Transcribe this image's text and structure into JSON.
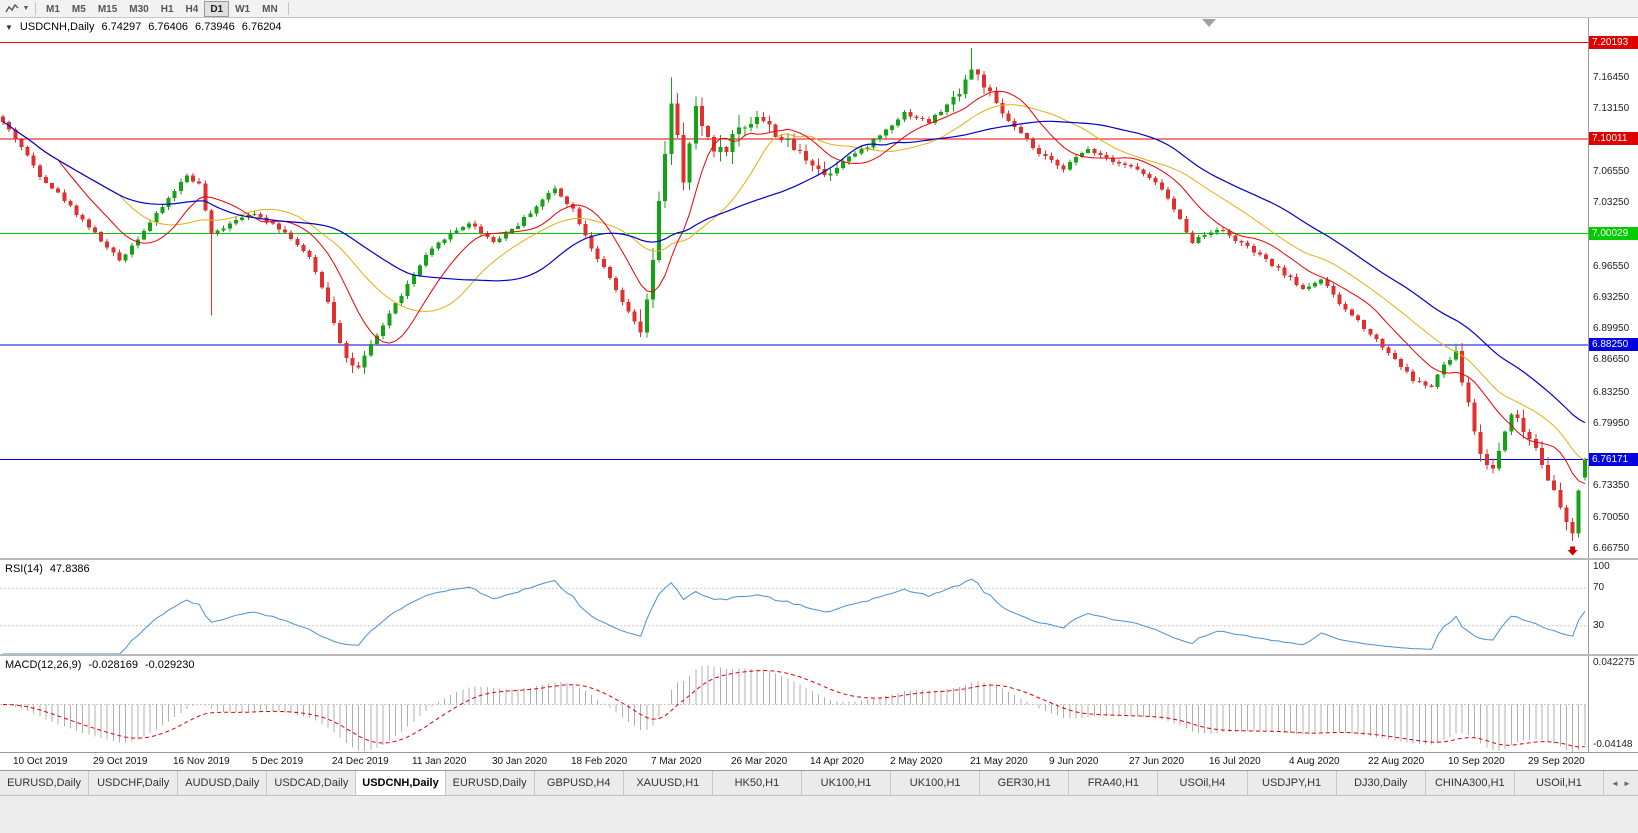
{
  "toolbar": {
    "timeframes": [
      "M1",
      "M5",
      "M15",
      "M30",
      "H1",
      "H4",
      "D1",
      "W1",
      "MN"
    ],
    "active_timeframe": "D1"
  },
  "chart": {
    "symbol_label": "USDCNH,Daily",
    "ohlc": {
      "open": "6.74297",
      "high": "6.76406",
      "low": "6.73946",
      "close": "6.76204"
    },
    "price_max": 7.228,
    "price_min": 6.6578,
    "axis_ticks": [
      "7.16450",
      "7.13150",
      "7.06550",
      "7.03250",
      "6.96550",
      "6.93250",
      "6.89950",
      "6.86650",
      "6.83250",
      "6.79950",
      "6.73350",
      "6.70050",
      "6.66750"
    ],
    "levels": [
      {
        "value": "7.20193",
        "price": 7.20193,
        "color": "#e00000"
      },
      {
        "value": "7.10011",
        "price": 7.10011,
        "color": "#e00000"
      },
      {
        "value": "7.00029",
        "price": 7.00029,
        "color": "#00cc00"
      },
      {
        "value": "6.88250",
        "price": 6.8825,
        "color": "#0000e0"
      },
      {
        "value": "6.76171",
        "price": 6.76171,
        "color": "#0000e0"
      }
    ]
  },
  "rsi": {
    "label": "RSI(14)",
    "value": "47.8386",
    "period": 14,
    "color": "#4a90d2",
    "levels": [
      70,
      30
    ],
    "ticks": [
      {
        "label": "100",
        "v": 100
      },
      {
        "label": "70",
        "v": 70
      },
      {
        "label": "30",
        "v": 30
      }
    ]
  },
  "macd": {
    "label": "MACD(12,26,9)",
    "value_main": "-0.028169",
    "value_signal": "-0.029230",
    "tick_top": "0.042275",
    "tick_bottom": "-0.04148",
    "max": 0.042275,
    "min": -0.04148,
    "histogram_color": "#b0b0b0",
    "signal_color": "#e00000"
  },
  "dates": [
    {
      "label": "10 Oct 2019",
      "bar": 2
    },
    {
      "label": "29 Oct 2019",
      "bar": 15
    },
    {
      "label": "16 Nov 2019",
      "bar": 28
    },
    {
      "label": "5 Dec 2019",
      "bar": 41
    },
    {
      "label": "24 Dec 2019",
      "bar": 54
    },
    {
      "label": "11 Jan 2020",
      "bar": 67
    },
    {
      "label": "30 Jan 2020",
      "bar": 80
    },
    {
      "label": "18 Feb 2020",
      "bar": 93
    },
    {
      "label": "7 Mar 2020",
      "bar": 106
    },
    {
      "label": "26 Mar 2020",
      "bar": 119
    },
    {
      "label": "14 Apr 2020",
      "bar": 132
    },
    {
      "label": "2 May 2020",
      "bar": 145
    },
    {
      "label": "21 May 2020",
      "bar": 158
    },
    {
      "label": "9 Jun 2020",
      "bar": 171
    },
    {
      "label": "27 Jun 2020",
      "bar": 184
    },
    {
      "label": "16 Jul 2020",
      "bar": 197
    },
    {
      "label": "4 Aug 2020",
      "bar": 210
    },
    {
      "label": "22 Aug 2020",
      "bar": 223
    },
    {
      "label": "10 Sep 2020",
      "bar": 236
    },
    {
      "label": "29 Sep 2020",
      "bar": 249
    }
  ],
  "tabs": {
    "items": [
      "EURUSD,Daily",
      "USDCHF,Daily",
      "AUDUSD,Daily",
      "USDCAD,Daily",
      "USDCNH,Daily",
      "EURUSD,Daily",
      "GBPUSD,H4",
      "XAUUSD,H1",
      "HK50,H1",
      "UK100,H1",
      "UK100,H1",
      "GER30,H1",
      "FRA40,H1",
      "USOil,H4",
      "USDJPY,H1",
      "DJ30,Daily",
      "CHINA300,H1",
      "USOil,H1"
    ],
    "active_index": 4,
    "scroll_left_icon": "◄",
    "scroll_right_icon": "►"
  },
  "chart_data": {
    "type": "candlestick",
    "symbol": "USDCNH",
    "timeframe": "Daily",
    "bars": 259,
    "seed": 42,
    "base_volatility": 0.0045,
    "volatility": [
      {
        "from": 53,
        "to": 60,
        "amp": 0.011
      },
      {
        "from": 104,
        "to": 122,
        "amp": 0.02
      },
      {
        "from": 123,
        "to": 136,
        "amp": 0.011
      },
      {
        "from": 155,
        "to": 163,
        "amp": 0.012
      },
      {
        "from": 237,
        "to": 258,
        "amp": 0.012
      }
    ],
    "anchors": [
      [
        0,
        7.118
      ],
      [
        3,
        7.092
      ],
      [
        6,
        7.062
      ],
      [
        10,
        7.036
      ],
      [
        14,
        7.008
      ],
      [
        17,
        6.985
      ],
      [
        19,
        6.972
      ],
      [
        22,
        6.996
      ],
      [
        25,
        7.02
      ],
      [
        28,
        7.046
      ],
      [
        30,
        7.062
      ],
      [
        32,
        7.052
      ],
      [
        34,
        6.998
      ],
      [
        37,
        7.012
      ],
      [
        40,
        7.022
      ],
      [
        44,
        7.012
      ],
      [
        47,
        6.996
      ],
      [
        50,
        6.974
      ],
      [
        53,
        6.93
      ],
      [
        56,
        6.868
      ],
      [
        58,
        6.856
      ],
      [
        60,
        6.88
      ],
      [
        63,
        6.916
      ],
      [
        66,
        6.946
      ],
      [
        69,
        6.976
      ],
      [
        72,
        6.996
      ],
      [
        76,
        7.012
      ],
      [
        80,
        6.992
      ],
      [
        84,
        7.01
      ],
      [
        88,
        7.036
      ],
      [
        90,
        7.048
      ],
      [
        93,
        7.026
      ],
      [
        96,
        6.986
      ],
      [
        99,
        6.952
      ],
      [
        102,
        6.916
      ],
      [
        104,
        6.898
      ],
      [
        105,
        6.924
      ],
      [
        106,
        6.972
      ],
      [
        107,
        7.028
      ],
      [
        108,
        7.088
      ],
      [
        109,
        7.142
      ],
      [
        110,
        7.1
      ],
      [
        111,
        7.048
      ],
      [
        112,
        7.096
      ],
      [
        113,
        7.128
      ],
      [
        115,
        7.102
      ],
      [
        117,
        7.086
      ],
      [
        120,
        7.11
      ],
      [
        123,
        7.126
      ],
      [
        126,
        7.106
      ],
      [
        129,
        7.09
      ],
      [
        132,
        7.076
      ],
      [
        134,
        7.062
      ],
      [
        137,
        7.078
      ],
      [
        140,
        7.088
      ],
      [
        143,
        7.104
      ],
      [
        147,
        7.128
      ],
      [
        151,
        7.118
      ],
      [
        155,
        7.142
      ],
      [
        158,
        7.174
      ],
      [
        160,
        7.158
      ],
      [
        162,
        7.134
      ],
      [
        165,
        7.112
      ],
      [
        169,
        7.084
      ],
      [
        173,
        7.07
      ],
      [
        177,
        7.09
      ],
      [
        181,
        7.078
      ],
      [
        185,
        7.068
      ],
      [
        189,
        7.048
      ],
      [
        194,
        6.992
      ],
      [
        198,
        7.006
      ],
      [
        202,
        6.99
      ],
      [
        206,
        6.972
      ],
      [
        209,
        6.958
      ],
      [
        212,
        6.942
      ],
      [
        215,
        6.952
      ],
      [
        218,
        6.926
      ],
      [
        221,
        6.908
      ],
      [
        224,
        6.888
      ],
      [
        227,
        6.868
      ],
      [
        230,
        6.846
      ],
      [
        233,
        6.838
      ],
      [
        235,
        6.862
      ],
      [
        237,
        6.872
      ],
      [
        239,
        6.82
      ],
      [
        241,
        6.766
      ],
      [
        243,
        6.752
      ],
      [
        245,
        6.792
      ],
      [
        246,
        6.814
      ],
      [
        248,
        6.792
      ],
      [
        250,
        6.776
      ],
      [
        252,
        6.744
      ],
      [
        254,
        6.71
      ],
      [
        255,
        6.692
      ],
      [
        256,
        6.684
      ],
      [
        257,
        6.73
      ],
      [
        258,
        6.762
      ]
    ],
    "wick_overrides": [
      {
        "bar": 34,
        "low": 6.914
      },
      {
        "bar": 109,
        "high": 7.1652
      },
      {
        "bar": 158,
        "high": 7.1962
      },
      {
        "bar": 256,
        "low": 6.676
      }
    ],
    "last_candle": {
      "open": 6.74297,
      "high": 6.76406,
      "low": 6.73946,
      "close": 6.76204
    },
    "markers": [
      {
        "bar": 256,
        "price": 6.672,
        "type": "sell-arrow",
        "color": "#cc0000"
      }
    ],
    "moving_averages": [
      {
        "period": 20,
        "color": "#e5b012",
        "width": 1
      },
      {
        "period": 10,
        "color": "#f00000",
        "width": 1
      },
      {
        "period": 34,
        "color": "#0000c8",
        "width": 1.2
      }
    ],
    "colors": {
      "up": "#15a215",
      "down": "#e03131"
    },
    "indicators": [
      {
        "name": "RSI",
        "period": 14,
        "current": 47.8386
      },
      {
        "name": "MACD",
        "fast": 12,
        "slow": 26,
        "signal": 9,
        "current_main": -0.028169,
        "current_signal": -0.02923
      }
    ]
  }
}
